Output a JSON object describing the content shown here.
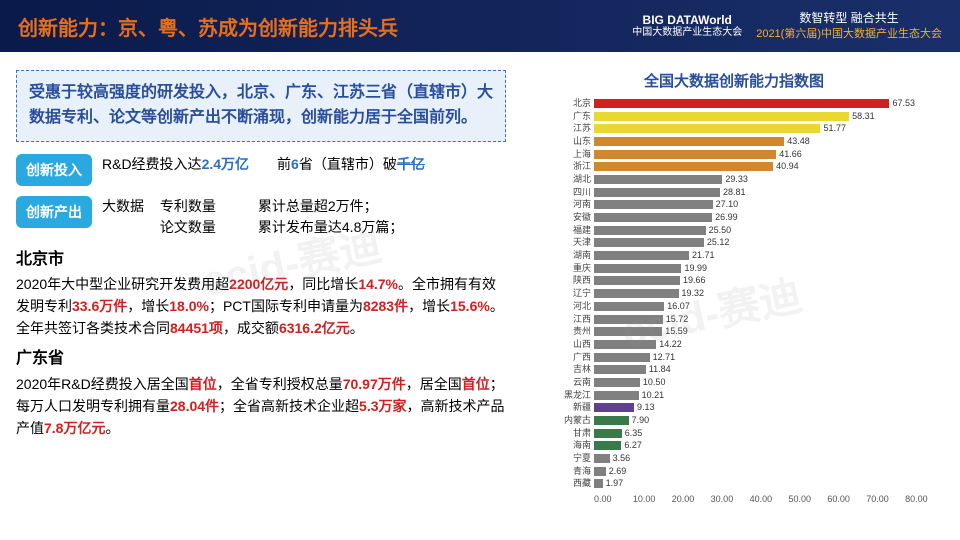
{
  "header": {
    "title": "创新能力：京、粤、苏成为创新能力排头兵",
    "logo_main": "BIG DATAWorld",
    "logo_sub": "中国大数据产业生态大会",
    "event_line1": "数智转型 融合共生",
    "event_line2": "2021(第六届)中国大数据产业生态大会"
  },
  "intro": "受惠于较高强度的研发投入，北京、广东、江苏三省（直辖市）大数据专利、论文等创新产出不断涌现，创新能力居于全国前列。",
  "badges": {
    "input": {
      "label": "创新投入",
      "text_pre": "R&D经费投入达",
      "hl1": "2.4万亿",
      "text_mid": "　　前",
      "hl2": "6",
      "text_end": "省（直辖市）破",
      "hl3": "千亿"
    },
    "output": {
      "label": "创新产出",
      "sub": "大数据",
      "l1a": "专利数量",
      "l1b": "累计总量超2万件；",
      "l2a": "论文数量",
      "l2b": "累计发布量达4.8万篇；"
    }
  },
  "beijing": {
    "name": "北京市",
    "text": "2020年大中型企业研究开发费用超<r>2200亿元</r>，同比增长<r>14.7%</r>。全市拥有有效发明专利<r>33.6万件</r>，增长<r>18.0%</r>；PCT国际专利申请量为<r>8283件</r>，增长<r>15.6%</r>。全年共签订各类技术合同<r>84451项</r>，成交额<r>6316.2亿元</r>。"
  },
  "guangdong": {
    "name": "广东省",
    "text": "2020年R&D经费投入居全国<r>首位</r>，全省专利授权总量<r>70.97万件</r>，居全国<r>首位</r>；每万人口发明专利拥有量<r>28.04件</r>；全省高新技术企业超<r>5.3万家</r>，高新技术产品产值<r>7.8万亿元</r>。"
  },
  "chart": {
    "title": "全国大数据创新能力指数图",
    "max": 80,
    "xticks": [
      "0.00",
      "10.00",
      "20.00",
      "30.00",
      "40.00",
      "50.00",
      "60.00",
      "70.00",
      "80.00"
    ],
    "bars": [
      {
        "label": "北京",
        "value": 67.53,
        "color": "#d02020"
      },
      {
        "label": "广东",
        "value": 58.31,
        "color": "#e8d830"
      },
      {
        "label": "江苏",
        "value": 51.77,
        "color": "#e8d830"
      },
      {
        "label": "山东",
        "value": 43.48,
        "color": "#d08830"
      },
      {
        "label": "上海",
        "value": 41.66,
        "color": "#d08830"
      },
      {
        "label": "浙江",
        "value": 40.94,
        "color": "#d08830"
      },
      {
        "label": "湖北",
        "value": 29.33,
        "color": "#808080"
      },
      {
        "label": "四川",
        "value": 28.81,
        "color": "#808080"
      },
      {
        "label": "河南",
        "value": 27.1,
        "color": "#808080"
      },
      {
        "label": "安徽",
        "value": 26.99,
        "color": "#808080"
      },
      {
        "label": "福建",
        "value": 25.5,
        "color": "#808080"
      },
      {
        "label": "天津",
        "value": 25.12,
        "color": "#808080"
      },
      {
        "label": "湖南",
        "value": 21.71,
        "color": "#808080"
      },
      {
        "label": "重庆",
        "value": 19.99,
        "color": "#808080"
      },
      {
        "label": "陕西",
        "value": 19.66,
        "color": "#808080"
      },
      {
        "label": "辽宁",
        "value": 19.32,
        "color": "#808080"
      },
      {
        "label": "河北",
        "value": 16.07,
        "color": "#808080"
      },
      {
        "label": "江西",
        "value": 15.72,
        "color": "#808080"
      },
      {
        "label": "贵州",
        "value": 15.59,
        "color": "#808080"
      },
      {
        "label": "山西",
        "value": 14.22,
        "color": "#808080"
      },
      {
        "label": "广西",
        "value": 12.71,
        "color": "#808080"
      },
      {
        "label": "吉林",
        "value": 11.84,
        "color": "#808080"
      },
      {
        "label": "云南",
        "value": 10.5,
        "color": "#808080"
      },
      {
        "label": "黑龙江",
        "value": 10.21,
        "color": "#808080"
      },
      {
        "label": "新疆",
        "value": 9.13,
        "color": "#604090"
      },
      {
        "label": "内蒙古",
        "value": 7.9,
        "color": "#3a7a4a"
      },
      {
        "label": "甘肃",
        "value": 6.35,
        "color": "#3a7a4a"
      },
      {
        "label": "海南",
        "value": 6.27,
        "color": "#3a7a4a"
      },
      {
        "label": "宁夏",
        "value": 3.56,
        "color": "#808080"
      },
      {
        "label": "青海",
        "value": 2.69,
        "color": "#808080"
      },
      {
        "label": "西藏",
        "value": 1.97,
        "color": "#808080"
      }
    ]
  },
  "watermark": "ccid-赛迪"
}
